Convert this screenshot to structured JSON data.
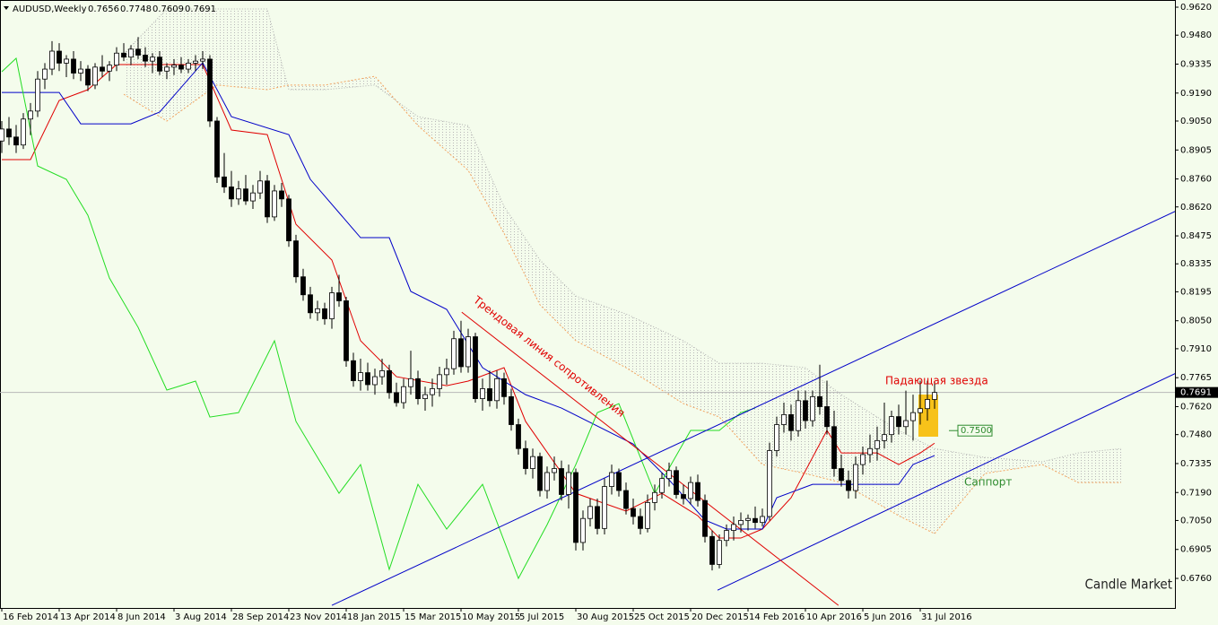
{
  "chart_data": {
    "type": "candlestick",
    "title": "AUDUSD,Weekly",
    "annotations": {
      "resistance": "Трендовая линия сопротивления",
      "star": "Падающая звезда",
      "support": "Саппорт",
      "brand": "Candle Market"
    },
    "xlim": [
      -0.25,
      163.5
    ],
    "ylim": [
      0.6612,
      0.9656
    ],
    "yticks": [
      {
        "value": 0.962,
        "label": "0.9620"
      },
      {
        "value": 0.948,
        "label": "0.9480"
      },
      0.9335,
      {
        "value": 0.919,
        "label": "0.9190"
      },
      {
        "value": 0.905,
        "label": "0.9050"
      },
      0.8905,
      {
        "value": 0.876,
        "label": "0.8760"
      },
      {
        "value": 0.862,
        "label": "0.8620"
      },
      0.8475,
      0.8335,
      0.8195,
      {
        "value": 0.805,
        "label": "0.8050"
      },
      {
        "value": 0.791,
        "label": "0.7910"
      },
      0.7765,
      {
        "value": 0.762,
        "label": "0.7620"
      },
      {
        "value": 0.748,
        "label": "0.7480"
      },
      0.7335,
      {
        "value": 0.719,
        "label": "0.7190"
      },
      {
        "value": 0.705,
        "label": "0.7050"
      },
      0.6905,
      {
        "value": 0.676,
        "label": "0.6760"
      }
    ],
    "categories": [
      "16 Feb 2014",
      null,
      null,
      null,
      null,
      null,
      null,
      null,
      "13 Apr 2014",
      null,
      null,
      null,
      null,
      null,
      null,
      null,
      "8 Jun 2014",
      null,
      null,
      null,
      null,
      null,
      null,
      null,
      "3 Aug 2014",
      null,
      null,
      null,
      null,
      null,
      null,
      null,
      "28 Sep 2014",
      null,
      null,
      null,
      null,
      null,
      null,
      null,
      "23 Nov 2014",
      null,
      null,
      null,
      null,
      null,
      null,
      null,
      "18 Jan 2015",
      null,
      null,
      null,
      null,
      null,
      null,
      null,
      "15 Mar 2015",
      null,
      null,
      null,
      null,
      null,
      null,
      null,
      "10 May 2015",
      null,
      null,
      null,
      null,
      null,
      null,
      null,
      "5 Jul 2015",
      null,
      null,
      null,
      null,
      null,
      null,
      null,
      "30 Aug 2015",
      null,
      null,
      null,
      null,
      null,
      null,
      null,
      "25 Oct 2015",
      null,
      null,
      null,
      null,
      null,
      null,
      null,
      "20 Dec 2015",
      null,
      null,
      null,
      null,
      null,
      null,
      null,
      "14 Feb 2016",
      null,
      null,
      null,
      null,
      null,
      null,
      null,
      "10 Apr 2016",
      null,
      null,
      null,
      null,
      null,
      null,
      null,
      "5 Jun 2016",
      null,
      null,
      null,
      null,
      null,
      null,
      null,
      "31 Jul 2016",
      null,
      null
    ],
    "candles": [
      [
        0.895,
        0.905,
        0.889,
        0.901
      ],
      [
        0.901,
        0.907,
        0.893,
        0.897
      ],
      [
        0.897,
        0.903,
        0.889,
        0.893
      ],
      [
        0.893,
        0.909,
        0.891,
        0.906
      ],
      [
        0.906,
        0.914,
        0.898,
        0.91
      ],
      [
        0.91,
        0.93,
        0.907,
        0.926
      ],
      [
        0.926,
        0.934,
        0.921,
        0.931
      ],
      [
        0.931,
        0.945,
        0.928,
        0.94
      ],
      [
        0.94,
        0.944,
        0.93,
        0.934
      ],
      [
        0.934,
        0.938,
        0.927,
        0.936
      ],
      [
        0.936,
        0.94,
        0.926,
        0.929
      ],
      [
        0.929,
        0.935,
        0.925,
        0.931
      ],
      [
        0.931,
        0.933,
        0.92,
        0.923
      ],
      [
        0.923,
        0.934,
        0.921,
        0.932
      ],
      [
        0.932,
        0.938,
        0.927,
        0.93
      ],
      [
        0.93,
        0.935,
        0.925,
        0.933
      ],
      [
        0.933,
        0.942,
        0.93,
        0.939
      ],
      [
        0.939,
        0.944,
        0.935,
        0.937
      ],
      [
        0.937,
        0.943,
        0.933,
        0.941
      ],
      [
        0.941,
        0.947,
        0.936,
        0.938
      ],
      [
        0.938,
        0.942,
        0.932,
        0.935
      ],
      [
        0.935,
        0.939,
        0.929,
        0.937
      ],
      [
        0.937,
        0.94,
        0.928,
        0.93
      ],
      [
        0.93,
        0.934,
        0.926,
        0.932
      ],
      [
        0.932,
        0.936,
        0.928,
        0.933
      ],
      [
        0.933,
        0.937,
        0.929,
        0.931
      ],
      [
        0.931,
        0.936,
        0.929,
        0.934
      ],
      [
        0.934,
        0.938,
        0.93,
        0.935
      ],
      [
        0.935,
        0.94,
        0.931,
        0.936
      ],
      [
        0.936,
        0.938,
        0.902,
        0.905
      ],
      [
        0.905,
        0.907,
        0.874,
        0.877
      ],
      [
        0.877,
        0.889,
        0.869,
        0.872
      ],
      [
        0.872,
        0.88,
        0.862,
        0.866
      ],
      [
        0.866,
        0.875,
        0.863,
        0.871
      ],
      [
        0.871,
        0.878,
        0.863,
        0.865
      ],
      [
        0.865,
        0.873,
        0.861,
        0.869
      ],
      [
        0.869,
        0.88,
        0.866,
        0.875
      ],
      [
        0.875,
        0.878,
        0.854,
        0.857
      ],
      [
        0.857,
        0.873,
        0.855,
        0.87
      ],
      [
        0.87,
        0.874,
        0.862,
        0.866
      ],
      [
        0.866,
        0.868,
        0.842,
        0.845
      ],
      [
        0.845,
        0.848,
        0.824,
        0.827
      ],
      [
        0.827,
        0.831,
        0.815,
        0.818
      ],
      [
        0.818,
        0.822,
        0.806,
        0.809
      ],
      [
        0.809,
        0.815,
        0.805,
        0.811
      ],
      [
        0.811,
        0.814,
        0.803,
        0.806
      ],
      [
        0.806,
        0.822,
        0.801,
        0.819
      ],
      [
        0.819,
        0.828,
        0.812,
        0.815
      ],
      [
        0.815,
        0.817,
        0.782,
        0.785
      ],
      [
        0.785,
        0.789,
        0.772,
        0.775
      ],
      [
        0.775,
        0.786,
        0.77,
        0.779
      ],
      [
        0.779,
        0.784,
        0.77,
        0.773
      ],
      [
        0.773,
        0.781,
        0.768,
        0.777
      ],
      [
        0.777,
        0.786,
        0.773,
        0.78
      ],
      [
        0.78,
        0.783,
        0.766,
        0.769
      ],
      [
        0.769,
        0.774,
        0.762,
        0.764
      ],
      [
        0.764,
        0.776,
        0.761,
        0.772
      ],
      [
        0.772,
        0.79,
        0.768,
        0.776
      ],
      [
        0.776,
        0.78,
        0.763,
        0.766
      ],
      [
        0.766,
        0.772,
        0.76,
        0.768
      ],
      [
        0.768,
        0.776,
        0.762,
        0.771
      ],
      [
        0.771,
        0.782,
        0.767,
        0.778
      ],
      [
        0.778,
        0.786,
        0.773,
        0.781
      ],
      [
        0.781,
        0.8,
        0.778,
        0.796
      ],
      [
        0.796,
        0.805,
        0.779,
        0.782
      ],
      [
        0.782,
        0.801,
        0.779,
        0.797
      ],
      [
        0.797,
        0.799,
        0.764,
        0.766
      ],
      [
        0.766,
        0.776,
        0.76,
        0.771
      ],
      [
        0.771,
        0.78,
        0.762,
        0.765
      ],
      [
        0.765,
        0.78,
        0.761,
        0.776
      ],
      [
        0.776,
        0.779,
        0.763,
        0.767
      ],
      [
        0.767,
        0.771,
        0.75,
        0.753
      ],
      [
        0.753,
        0.756,
        0.738,
        0.741
      ],
      [
        0.741,
        0.745,
        0.728,
        0.731
      ],
      [
        0.731,
        0.741,
        0.726,
        0.737
      ],
      [
        0.737,
        0.739,
        0.717,
        0.72
      ],
      [
        0.72,
        0.732,
        0.716,
        0.729
      ],
      [
        0.729,
        0.737,
        0.725,
        0.731
      ],
      [
        0.731,
        0.735,
        0.715,
        0.718
      ],
      [
        0.718,
        0.733,
        0.711,
        0.729
      ],
      [
        0.729,
        0.731,
        0.69,
        0.694
      ],
      [
        0.694,
        0.71,
        0.69,
        0.706
      ],
      [
        0.706,
        0.716,
        0.702,
        0.712
      ],
      [
        0.712,
        0.716,
        0.698,
        0.701
      ],
      [
        0.701,
        0.726,
        0.698,
        0.722
      ],
      [
        0.722,
        0.733,
        0.718,
        0.729
      ],
      [
        0.729,
        0.731,
        0.717,
        0.72
      ],
      [
        0.72,
        0.724,
        0.708,
        0.711
      ],
      [
        0.711,
        0.716,
        0.703,
        0.707
      ],
      [
        0.707,
        0.711,
        0.698,
        0.701
      ],
      [
        0.701,
        0.718,
        0.699,
        0.714
      ],
      [
        0.714,
        0.723,
        0.71,
        0.719
      ],
      [
        0.719,
        0.729,
        0.716,
        0.726
      ],
      [
        0.726,
        0.734,
        0.722,
        0.73
      ],
      [
        0.73,
        0.732,
        0.716,
        0.718
      ],
      [
        0.718,
        0.723,
        0.713,
        0.716
      ],
      [
        0.716,
        0.727,
        0.713,
        0.724
      ],
      [
        0.724,
        0.728,
        0.712,
        0.715
      ],
      [
        0.715,
        0.718,
        0.694,
        0.697
      ],
      [
        0.697,
        0.7,
        0.68,
        0.683
      ],
      [
        0.683,
        0.698,
        0.681,
        0.695
      ],
      [
        0.695,
        0.703,
        0.692,
        0.7
      ],
      [
        0.7,
        0.707,
        0.695,
        0.703
      ],
      [
        0.703,
        0.709,
        0.699,
        0.705
      ],
      [
        0.705,
        0.708,
        0.7,
        0.706
      ],
      [
        0.706,
        0.712,
        0.701,
        0.704
      ],
      [
        0.704,
        0.711,
        0.702,
        0.707
      ],
      [
        0.707,
        0.744,
        0.705,
        0.74
      ],
      [
        0.74,
        0.757,
        0.737,
        0.753
      ],
      [
        0.753,
        0.764,
        0.749,
        0.758
      ],
      [
        0.758,
        0.763,
        0.745,
        0.75
      ],
      [
        0.75,
        0.77,
        0.747,
        0.765
      ],
      [
        0.765,
        0.77,
        0.751,
        0.755
      ],
      [
        0.755,
        0.77,
        0.752,
        0.767
      ],
      [
        0.767,
        0.783,
        0.758,
        0.762
      ],
      [
        0.762,
        0.775,
        0.748,
        0.752
      ],
      [
        0.752,
        0.76,
        0.727,
        0.731
      ],
      [
        0.731,
        0.738,
        0.722,
        0.725
      ],
      [
        0.725,
        0.73,
        0.716,
        0.72
      ],
      [
        0.72,
        0.737,
        0.716,
        0.733
      ],
      [
        0.733,
        0.742,
        0.728,
        0.738
      ],
      [
        0.738,
        0.748,
        0.734,
        0.741
      ],
      [
        0.741,
        0.752,
        0.735,
        0.745
      ],
      [
        0.745,
        0.764,
        0.741,
        0.748
      ],
      [
        0.748,
        0.76,
        0.744,
        0.757
      ],
      [
        0.757,
        0.763,
        0.748,
        0.752
      ],
      [
        0.752,
        0.77,
        0.748,
        0.755
      ],
      [
        0.755,
        0.768,
        0.745,
        0.759
      ],
      [
        0.759,
        0.775,
        0.753,
        0.761
      ],
      [
        0.761,
        0.775,
        0.755,
        0.7656
      ],
      [
        0.7656,
        0.7748,
        0.7609,
        0.7691
      ]
    ],
    "cloud": {
      "x": [
        17,
        23,
        30,
        37,
        40,
        45,
        52,
        58,
        65,
        70,
        75,
        80,
        87,
        95,
        100,
        106,
        112,
        117,
        125,
        130,
        137,
        145,
        150,
        156
      ],
      "span_a": {
        "color": "#f4a460",
        "values": [
          0.9184,
          0.905,
          0.923,
          0.9207,
          0.923,
          0.923,
          0.9274,
          0.9027,
          0.8803,
          0.8488,
          0.813,
          0.795,
          0.7815,
          0.7635,
          0.7568,
          0.733,
          0.7285,
          0.724,
          0.7074,
          0.6984,
          0.7285,
          0.733,
          0.724,
          0.724
        ]
      },
      "span_b": {
        "color": "#b0b0b0",
        "values": [
          0.9387,
          0.9611,
          0.9611,
          0.9611,
          0.9207,
          0.9207,
          0.923,
          0.9072,
          0.9027,
          0.8623,
          0.8354,
          0.8174,
          0.8084,
          0.795,
          0.7837,
          0.7837,
          0.7815,
          0.768,
          0.7501,
          0.741,
          0.7366,
          0.7344,
          0.7388,
          0.741
        ]
      }
    },
    "lines": [
      {
        "color": "#e00000",
        "x": [
          0,
          4,
          8,
          12,
          16,
          28,
          32,
          37,
          41,
          46,
          50,
          55,
          62,
          65,
          70,
          73,
          80,
          87,
          92,
          97,
          100,
          103,
          106,
          110,
          115,
          117,
          122,
          125,
          128,
          130
        ],
        "values": [
          0.8857,
          0.8857,
          0.9153,
          0.9207,
          0.9333,
          0.9333,
          0.9005,
          0.8982,
          0.8533,
          0.8354,
          0.795,
          0.777,
          0.7725,
          0.7748,
          0.7815,
          0.7546,
          0.7186,
          0.7097,
          0.7186,
          0.7074,
          0.6962,
          0.6962,
          0.7007,
          0.7164,
          0.7501,
          0.7388,
          0.7388,
          0.733,
          0.7388,
          0.7437
        ]
      },
      {
        "color": "#0000c8",
        "x": [
          0,
          8,
          11,
          18,
          22,
          28,
          32,
          40,
          43,
          50,
          54,
          57,
          62,
          67,
          73,
          78,
          88,
          93,
          98,
          101,
          106,
          108,
          113,
          117,
          125,
          127,
          130
        ],
        "values": [
          0.9193,
          0.9193,
          0.9036,
          0.9036,
          0.9095,
          0.9342,
          0.9072,
          0.8982,
          0.8758,
          0.8466,
          0.8466,
          0.8197,
          0.8107,
          0.7815,
          0.768,
          0.7613,
          0.7433,
          0.7253,
          0.7052,
          0.7007,
          0.7007,
          0.7164,
          0.7231,
          0.7231,
          0.7231,
          0.733,
          0.7375
        ]
      },
      {
        "color": "#22dd22",
        "x": [
          0,
          2,
          5,
          9,
          12,
          15,
          19,
          23,
          27,
          29,
          33,
          38,
          41,
          47,
          50,
          54,
          58,
          62,
          67,
          72,
          76,
          80,
          83,
          86,
          91,
          96,
          100,
          103,
          105
        ],
        "values": [
          0.9297,
          0.9364,
          0.8825,
          0.8758,
          0.8578,
          0.8264,
          0.8017,
          0.7703,
          0.7748,
          0.7568,
          0.759,
          0.795,
          0.7546,
          0.7186,
          0.733,
          0.6805,
          0.7231,
          0.7007,
          0.7231,
          0.676,
          0.7029,
          0.733,
          0.759,
          0.7635,
          0.7186,
          0.7501,
          0.7501,
          0.759,
          0.7613
        ]
      }
    ],
    "trend_lines": [
      {
        "color": "#0000c8",
        "x": [
          46,
          164.5
        ],
        "values": [
          0.6625,
          0.8614
        ]
      },
      {
        "color": "#0000c8",
        "x": [
          99.75,
          164.5
        ],
        "values": [
          0.6701,
          0.7802
        ]
      },
      {
        "color": "#e00000",
        "x": [
          64.1,
          116.6
        ],
        "values": [
          0.8093,
          0.6625
        ]
      }
    ],
    "last_price": 0.7691,
    "support": {
      "value": 0.75,
      "value_label": "0.7500",
      "color": "#2e8b2e"
    }
  }
}
